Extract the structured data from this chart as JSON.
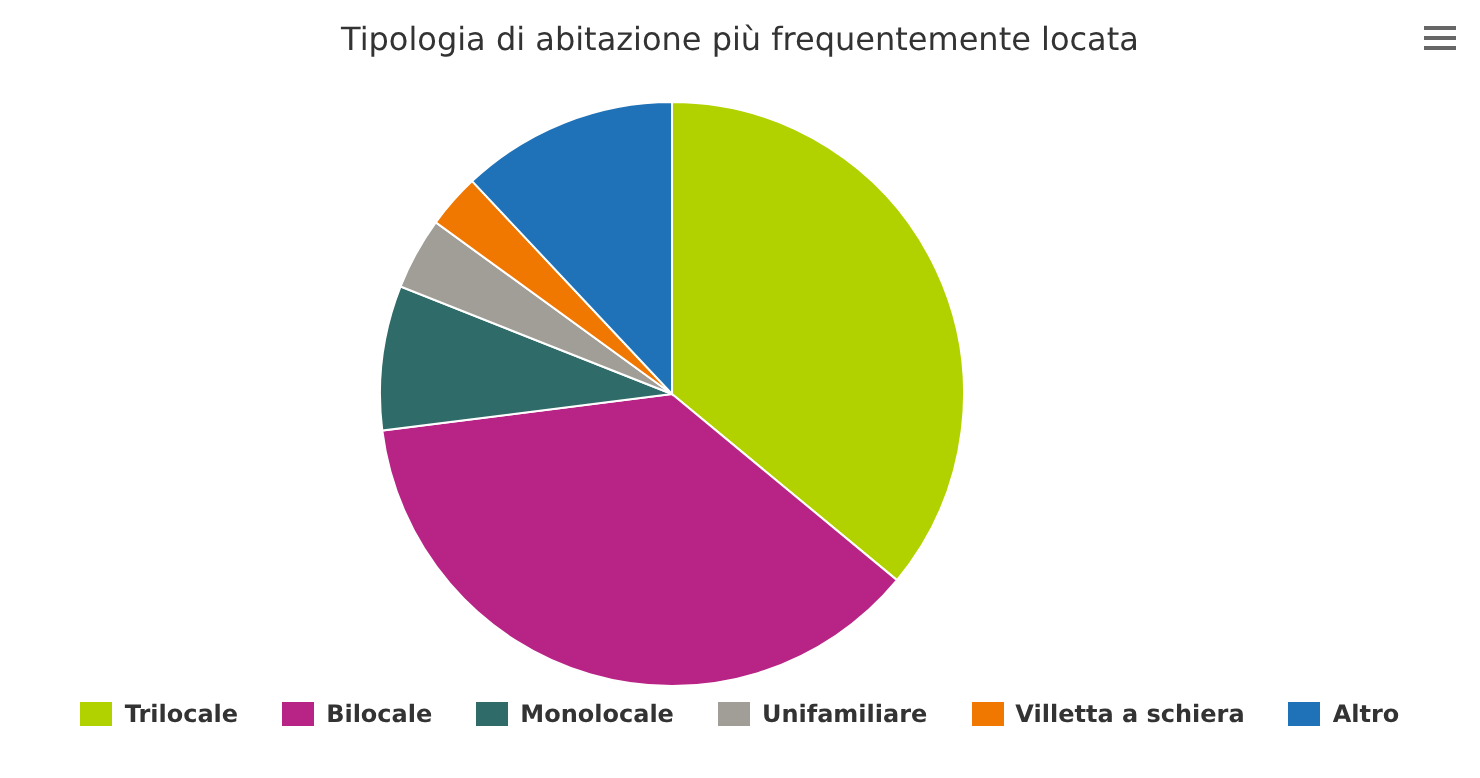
{
  "chart_data": {
    "type": "pie",
    "title": "Tipologia di abitazione più frequentemente locata",
    "categories": [
      "Trilocale",
      "Bilocale",
      "Monolocale",
      "Unifamiliare",
      "Villetta a schiera",
      "Altro"
    ],
    "values": [
      36,
      37,
      8,
      4,
      3,
      12
    ],
    "colors": [
      "#b2d200",
      "#b82485",
      "#2f6b68",
      "#a09e97",
      "#f07800",
      "#1f72b8"
    ],
    "legend": "bottom"
  }
}
